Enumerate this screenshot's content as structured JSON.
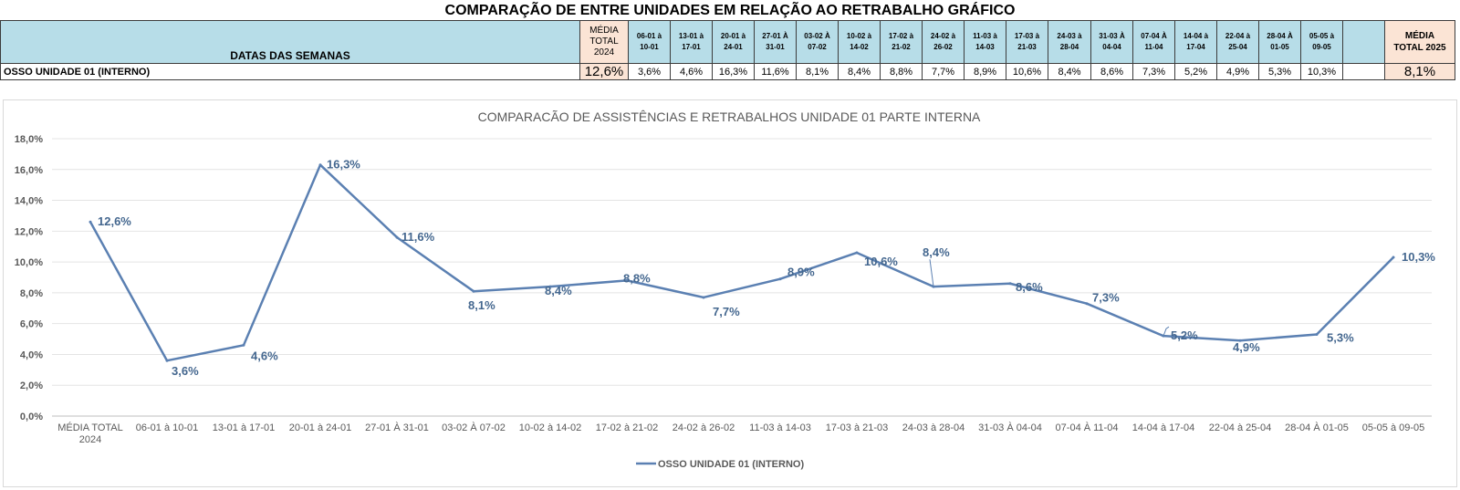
{
  "page_title": "COMPARAÇÃO DE ENTRE UNIDADES EM RELAÇÃO AO RETRABALHO GRÁFICO",
  "table": {
    "label_header": "DATAS DAS SEMANAS",
    "media_2024_header": [
      "MÉDIA",
      "TOTAL",
      "2024"
    ],
    "media_2025_header": [
      "MÉDIA",
      "TOTAL 2025"
    ],
    "week_headers": [
      [
        "06-01 à",
        "10-01"
      ],
      [
        "13-01 à",
        "17-01"
      ],
      [
        "20-01 à",
        "24-01"
      ],
      [
        "27-01 À",
        "31-01"
      ],
      [
        "03-02 À",
        "07-02"
      ],
      [
        "10-02 à",
        "14-02"
      ],
      [
        "17-02 à",
        "21-02"
      ],
      [
        "24-02 à",
        "26-02"
      ],
      [
        "11-03 à",
        "14-03"
      ],
      [
        "17-03 à",
        "21-03"
      ],
      [
        "24-03 à",
        "28-04"
      ],
      [
        "31-03 À",
        "04-04"
      ],
      [
        "07-04 À",
        "11-04"
      ],
      [
        "14-04 à",
        "17-04"
      ],
      [
        "22-04 à",
        "25-04"
      ],
      [
        "28-04 À",
        "01-05"
      ],
      [
        "05-05 à",
        "09-05"
      ]
    ],
    "row_label": "OSSO UNIDADE 01 (INTERNO)",
    "media_2024_value": "12,6%",
    "week_values": [
      "3,6%",
      "4,6%",
      "16,3%",
      "11,6%",
      "8,1%",
      "8,4%",
      "8,8%",
      "7,7%",
      "8,9%",
      "10,6%",
      "8,4%",
      "8,6%",
      "7,3%",
      "5,2%",
      "4,9%",
      "5,3%",
      "10,3%"
    ],
    "media_2025_value": "8,1%"
  },
  "chart_data": {
    "type": "line",
    "title": "COMPARACÃO DE ASSISTÊNCIAS E RETRABALHOS UNIDADE 01 PARTE INTERNA",
    "categories": [
      [
        "MÉDIA TOTAL",
        "2024"
      ],
      [
        "06-01 à 10-01"
      ],
      [
        "13-01 à 17-01"
      ],
      [
        "20-01 à 24-01"
      ],
      [
        "27-01 À 31-01"
      ],
      [
        "03-02 À 07-02"
      ],
      [
        "10-02 à 14-02"
      ],
      [
        "17-02 à 21-02"
      ],
      [
        "24-02 à 26-02"
      ],
      [
        "11-03 à 14-03"
      ],
      [
        "17-03 à 21-03"
      ],
      [
        "24-03 à 28-04"
      ],
      [
        "31-03 À 04-04"
      ],
      [
        "07-04 À 11-04"
      ],
      [
        "14-04 à 17-04"
      ],
      [
        "22-04 à 25-04"
      ],
      [
        "28-04 À 01-05"
      ],
      [
        "05-05 à 09-05"
      ]
    ],
    "series": [
      {
        "name": "OSSO UNIDADE 01 (INTERNO)",
        "values": [
          12.6,
          3.6,
          4.6,
          16.3,
          11.6,
          8.1,
          8.4,
          8.8,
          7.7,
          8.9,
          10.6,
          8.4,
          8.6,
          7.3,
          5.2,
          4.9,
          5.3,
          10.3
        ],
        "labels": [
          "12,6%",
          "3,6%",
          "4,6%",
          "16,3%",
          "11,6%",
          "8,1%",
          "8,4%",
          "8,8%",
          "7,7%",
          "8,9%",
          "10,6%",
          "8,4%",
          "8,6%",
          "7,3%",
          "5,2%",
          "4,9%",
          "5,3%",
          "10,3%"
        ],
        "color": "#5b80b2"
      }
    ],
    "ylim": [
      0,
      18
    ],
    "y_ticks": [
      "0,0%",
      "2,0%",
      "4,0%",
      "6,0%",
      "8,0%",
      "10,0%",
      "12,0%",
      "14,0%",
      "16,0%",
      "18,0%"
    ],
    "grid": true,
    "legend_position": "bottom"
  }
}
